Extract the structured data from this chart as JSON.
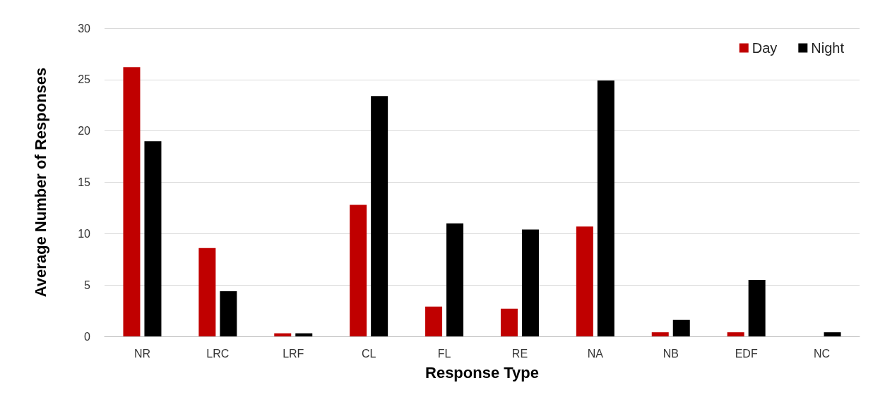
{
  "chart_data": {
    "type": "bar",
    "xlabel": "Response Type",
    "ylabel": "Average Number of Responses",
    "categories": [
      "NR",
      "LRC",
      "LRF",
      "CL",
      "FL",
      "RE",
      "NA",
      "NB",
      "EDF",
      "NC"
    ],
    "series": [
      {
        "name": "Day",
        "color": "#c00000",
        "values": [
          26.2,
          8.6,
          0.3,
          12.8,
          2.9,
          2.7,
          10.7,
          0.4,
          0.4,
          0
        ]
      },
      {
        "name": "Night",
        "color": "#000000",
        "values": [
          19.0,
          4.4,
          0.3,
          23.4,
          11.0,
          10.4,
          24.9,
          1.6,
          5.5,
          0.4
        ]
      }
    ],
    "ylim": [
      0,
      30
    ],
    "yticks": [
      0,
      5,
      10,
      15,
      20,
      25,
      30
    ],
    "grid": "y",
    "legend": "top right"
  }
}
